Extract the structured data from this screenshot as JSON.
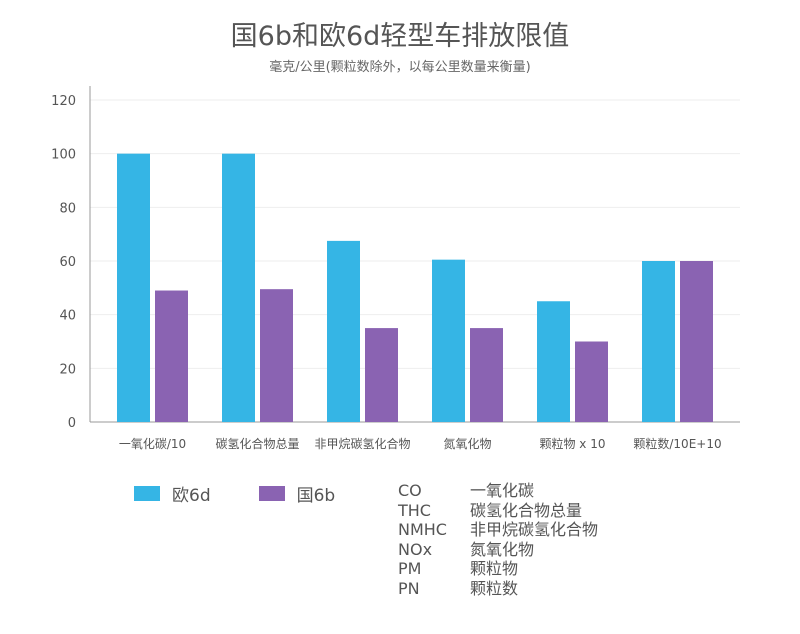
{
  "title": "国6b和欧6d轻型车排放限值",
  "subtitle": "毫克/公里(颗粒数除外，以每公里数量来衡量)",
  "colors": {
    "eu": "#35b5e5",
    "cn": "#8a63b2",
    "grid": "#eeeeee",
    "axis": "#999999"
  },
  "legend": [
    {
      "label": "欧6d",
      "color": "#35b5e5"
    },
    {
      "label": "国6b",
      "color": "#8a63b2"
    }
  ],
  "abbreviations": [
    {
      "code": "CO",
      "meaning": "一氧化碳"
    },
    {
      "code": "THC",
      "meaning": "碳氢化合物总量"
    },
    {
      "code": "NMHC",
      "meaning": "非甲烷碳氢化合物"
    },
    {
      "code": "NOx",
      "meaning": "氮氧化物"
    },
    {
      "code": "PM",
      "meaning": "颗粒物"
    },
    {
      "code": "PN",
      "meaning": "颗粒数"
    }
  ],
  "chart_data": {
    "type": "bar",
    "categories": [
      "一氧化碳/10",
      "碳氢化合物总量",
      "非甲烷碳氢化合物",
      "氮氧化物",
      "颗粒物 x 10",
      "颗粒数/10E+10"
    ],
    "series": [
      {
        "name": "欧6d",
        "values": [
          100,
          100,
          67.5,
          60.5,
          45,
          60
        ]
      },
      {
        "name": "国6b",
        "values": [
          49,
          49.5,
          35,
          35,
          30,
          60
        ]
      }
    ],
    "yticks": [
      0,
      20,
      40,
      60,
      80,
      100,
      120
    ],
    "ylim": [
      0,
      120
    ],
    "grid": true,
    "legend_position": "bottom-left"
  }
}
